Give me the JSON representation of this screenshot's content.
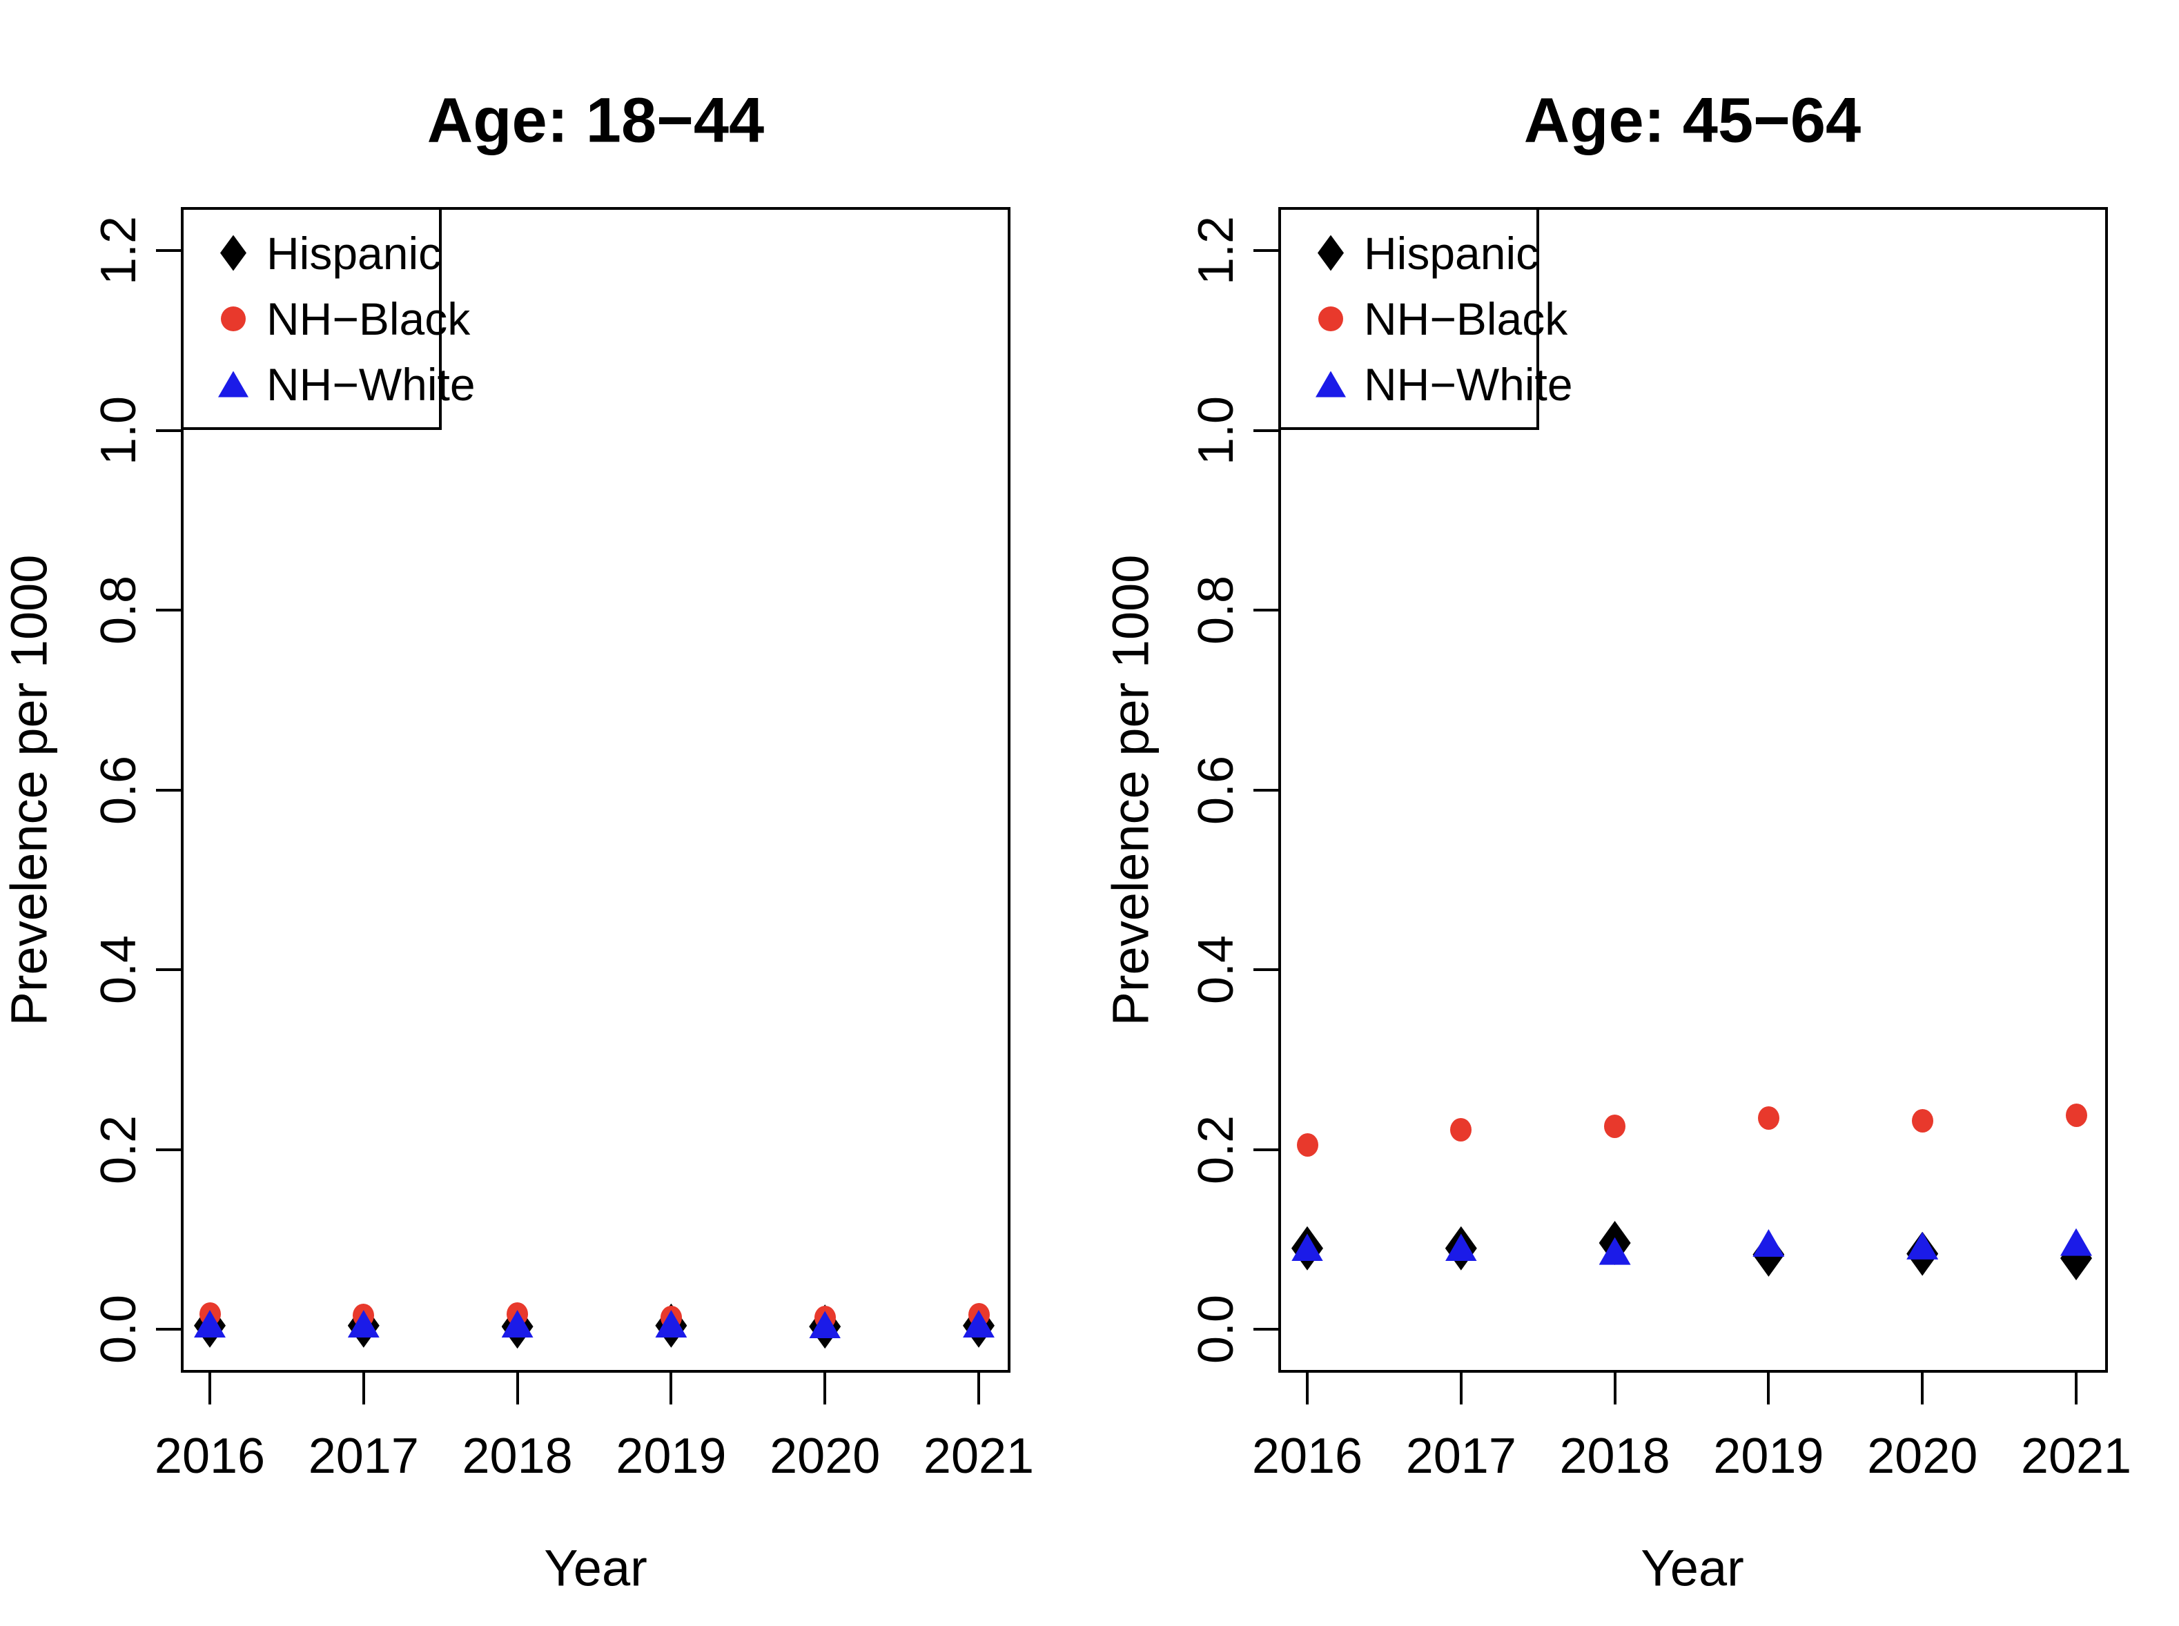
{
  "axes": {
    "x_label": "Year",
    "y_label": "Prevelence per 1000",
    "x_ticks": [
      "2016",
      "2017",
      "2018",
      "2019",
      "2020",
      "2021"
    ],
    "y_ticks": [
      "0.0",
      "0.2",
      "0.4",
      "0.6",
      "0.8",
      "1.0",
      "1.2"
    ]
  },
  "legend": {
    "items": [
      {
        "label": "Hispanic",
        "marker": "diamond",
        "color": "#000000"
      },
      {
        "label": "NH−Black",
        "marker": "circle",
        "color": "#e8392c"
      },
      {
        "label": "NH−White",
        "marker": "triangle",
        "color": "#1b1be8"
      }
    ]
  },
  "chart_data": [
    {
      "type": "scatter",
      "title": "Age: 18−44",
      "xlabel": "Year",
      "ylabel": "Prevelence per 1000",
      "x": [
        2016,
        2017,
        2018,
        2019,
        2020,
        2021
      ],
      "ylim": [
        0.0,
        1.2
      ],
      "yticks": [
        0.0,
        0.2,
        0.4,
        0.6,
        0.8,
        1.0,
        1.2
      ],
      "grid": false,
      "legend_position": "top-left",
      "series": [
        {
          "name": "Hispanic",
          "marker": "diamond",
          "color": "#000000",
          "values": [
            0.004,
            0.004,
            0.003,
            0.004,
            0.003,
            0.004
          ]
        },
        {
          "name": "NH-Black",
          "marker": "circle",
          "color": "#e8392c",
          "values": [
            0.017,
            0.015,
            0.017,
            0.013,
            0.013,
            0.016
          ]
        },
        {
          "name": "NH-White",
          "marker": "triangle",
          "color": "#1b1be8",
          "values": [
            0.006,
            0.006,
            0.006,
            0.006,
            0.005,
            0.006
          ]
        }
      ]
    },
    {
      "type": "scatter",
      "title": "Age: 45−64",
      "xlabel": "Year",
      "ylabel": "Prevelence per 1000",
      "x": [
        2016,
        2017,
        2018,
        2019,
        2020,
        2021
      ],
      "ylim": [
        0.0,
        1.2
      ],
      "yticks": [
        0.0,
        0.2,
        0.4,
        0.6,
        0.8,
        1.0,
        1.2
      ],
      "grid": false,
      "legend_position": "top-left",
      "series": [
        {
          "name": "Hispanic",
          "marker": "diamond",
          "color": "#000000",
          "values": [
            0.09,
            0.09,
            0.096,
            0.083,
            0.084,
            0.079
          ]
        },
        {
          "name": "NH-Black",
          "marker": "circle",
          "color": "#e8392c",
          "values": [
            0.205,
            0.222,
            0.226,
            0.235,
            0.232,
            0.238
          ]
        },
        {
          "name": "NH-White",
          "marker": "triangle",
          "color": "#1b1be8",
          "values": [
            0.091,
            0.091,
            0.087,
            0.096,
            0.093,
            0.097
          ]
        }
      ]
    }
  ]
}
